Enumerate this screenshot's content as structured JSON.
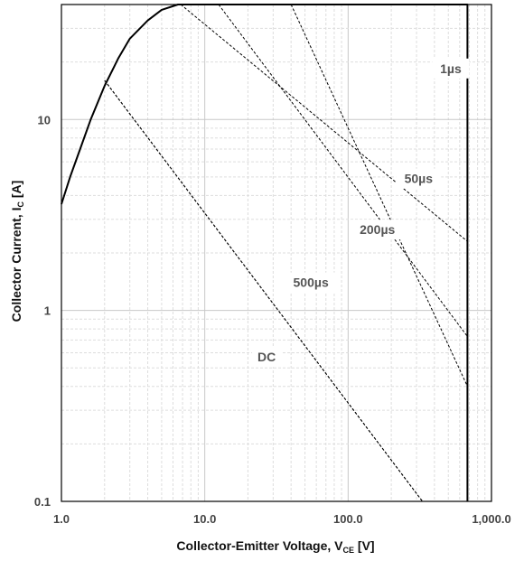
{
  "chart_data": {
    "type": "line",
    "x_scale": "log",
    "y_scale": "log",
    "xlim": [
      1,
      1000
    ],
    "ylim": [
      0.1,
      40
    ],
    "grid": true,
    "x_ticks": [
      1,
      10,
      100,
      1000
    ],
    "x_tick_labels": [
      "1.0",
      "10.0",
      "100.0",
      "1,000.0"
    ],
    "y_ticks": [
      0.1,
      1,
      10
    ],
    "y_tick_labels": [
      "0.1",
      "1",
      "10"
    ],
    "xlabel": {
      "main": "Collector-Emitter Voltage, V",
      "sub": "CE",
      "unit": " [V]"
    },
    "ylabel": {
      "main": "Collector Current, I",
      "sub": "C",
      "unit": " [A]"
    },
    "series": [
      {
        "style": "solid",
        "x": [
          1.0,
          1.15,
          1.35,
          1.6,
          2.0,
          2.5,
          3.0,
          4.0,
          5.0,
          6.5,
          7.0,
          680,
          680
        ],
        "y": [
          3.6,
          5.0,
          7.0,
          10.0,
          15.0,
          21.0,
          26.5,
          33.0,
          37.5,
          40.0,
          40.0,
          40.0,
          0.1
        ]
      },
      {
        "label": "1µs",
        "style": "dashed",
        "x": [
          6.8,
          680
        ],
        "y": [
          40.0,
          2.3
        ]
      },
      {
        "label": "50µs",
        "style": "dashed",
        "x": [
          12.5,
          680
        ],
        "y": [
          40.0,
          0.73
        ]
      },
      {
        "label": "200µs",
        "style": "dashed",
        "x": [
          40,
          680
        ],
        "y": [
          40.0,
          0.4
        ]
      },
      {
        "label": "500µs",
        "style": "dashed",
        "x": [
          2.0,
          330
        ],
        "y": [
          16.0,
          0.1
        ]
      },
      {
        "label": "DC",
        "style": "dashed",
        "x": [
          2.0,
          330
        ],
        "y": [
          16.0,
          0.1
        ]
      }
    ],
    "annotations": [
      {
        "text": "1µs",
        "x": 520,
        "y": 18.5
      },
      {
        "text": "50µs",
        "x": 310,
        "y": 4.9
      },
      {
        "text": "200µs",
        "x": 160,
        "y": 2.65
      },
      {
        "text": "500µs",
        "x": 55,
        "y": 1.4
      },
      {
        "text": "DC",
        "x": 27,
        "y": 0.57
      }
    ]
  }
}
